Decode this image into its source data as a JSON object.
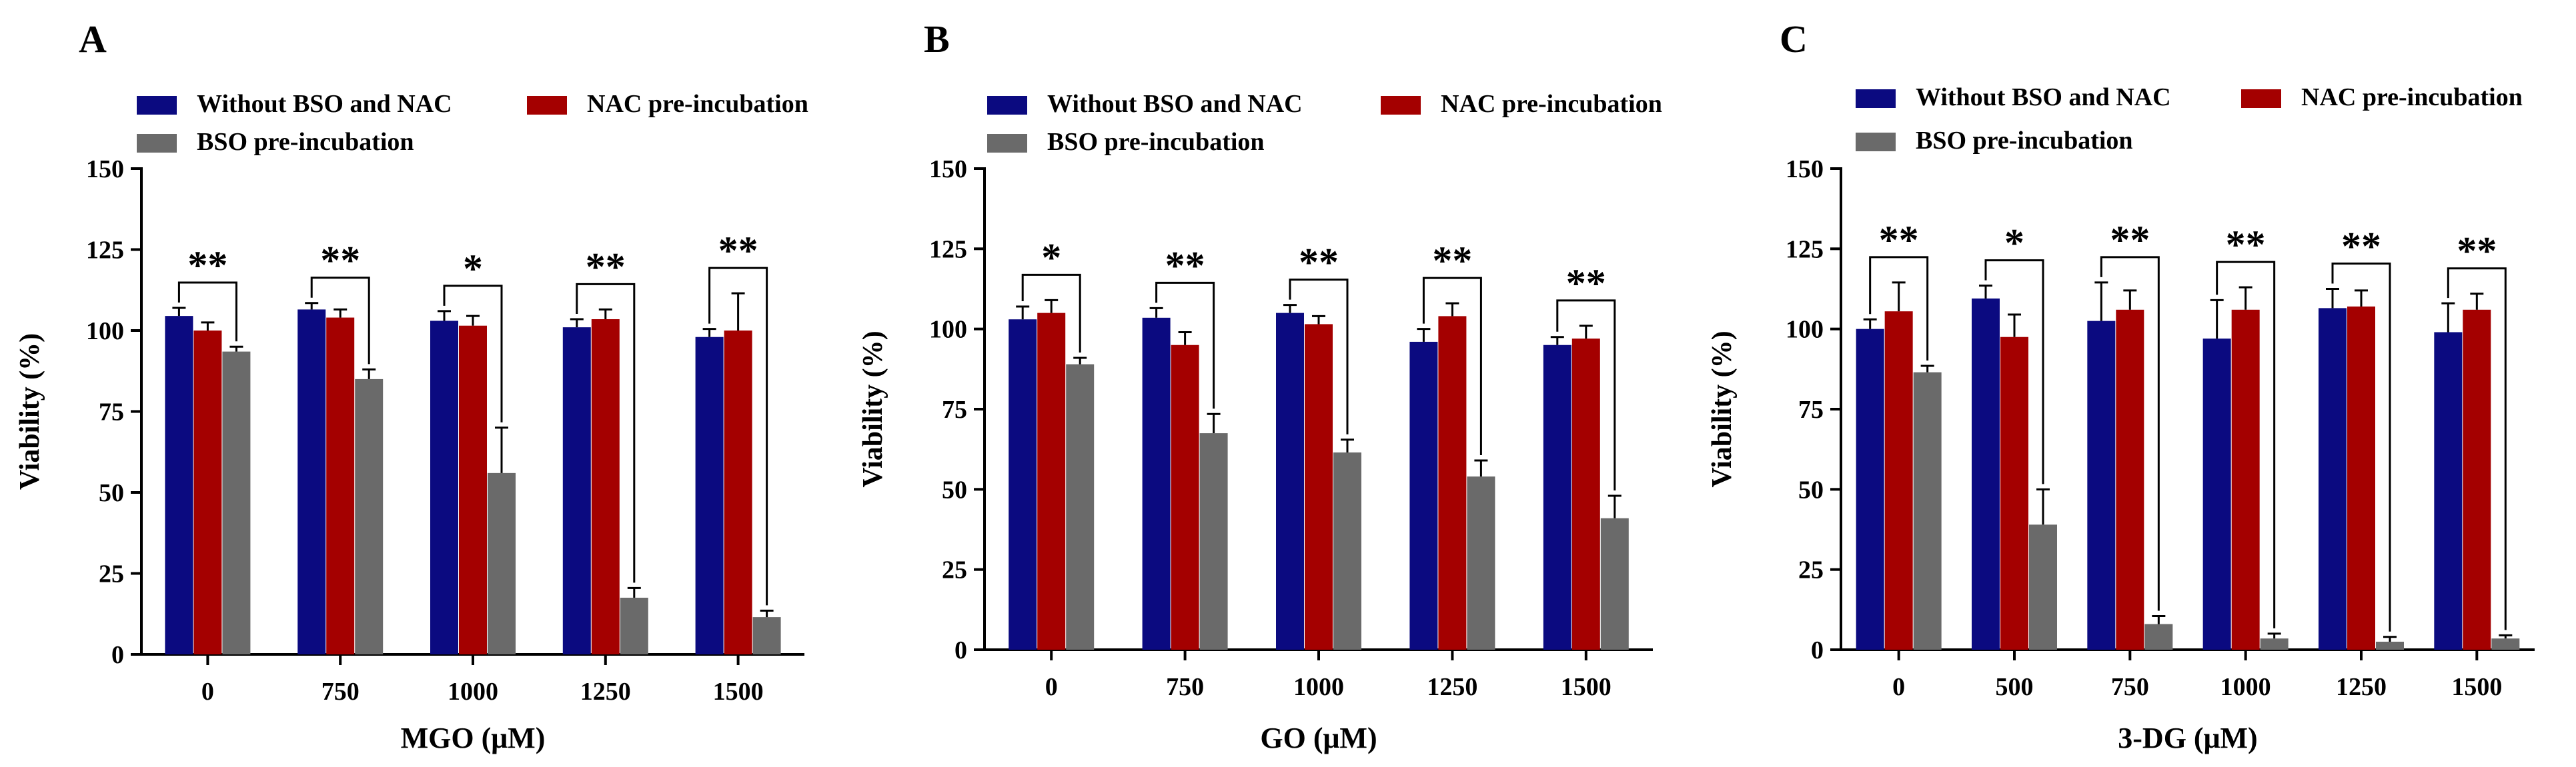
{
  "figure": {
    "series_names": [
      "Without BSO and NAC",
      "NAC pre-incubation",
      "BSO pre-incubation"
    ],
    "colors": [
      "#0b0a80",
      "#a40000",
      "#6a6a6a"
    ]
  },
  "chart_data": [
    {
      "type": "bar",
      "panel_label": "A",
      "xlabel": "MGO (μM)",
      "ylabel": "Viability (%)",
      "ylim": [
        0,
        150
      ],
      "yticks": [
        "0",
        "25",
        "50",
        "75",
        "100",
        "125",
        "150"
      ],
      "categories": [
        "0",
        "750",
        "1000",
        "1250",
        "1500"
      ],
      "series": [
        {
          "name": "Without BSO and NAC",
          "values": [
            104.5,
            106.5,
            103,
            101,
            98
          ],
          "errors": [
            2.5,
            2,
            3,
            2.5,
            2.5
          ]
        },
        {
          "name": "NAC pre-incubation",
          "values": [
            100,
            104,
            101.5,
            103.5,
            100
          ],
          "errors": [
            2.5,
            2.5,
            3,
            3,
            11.5
          ]
        },
        {
          "name": "BSO pre-incubation",
          "values": [
            93.5,
            85,
            56,
            17.5,
            11.5
          ],
          "errors": [
            1.5,
            3,
            14,
            3,
            2
          ]
        }
      ],
      "significance": [
        "**",
        "**",
        "*",
        "**",
        "**"
      ]
    },
    {
      "type": "bar",
      "panel_label": "B",
      "xlabel": "GO (μM)",
      "ylabel": "Viability (%)",
      "ylim": [
        0,
        150
      ],
      "yticks": [
        "0",
        "25",
        "50",
        "75",
        "100",
        "125",
        "150"
      ],
      "categories": [
        "0",
        "750",
        "1000",
        "1250",
        "1500"
      ],
      "series": [
        {
          "name": "Without BSO and NAC",
          "values": [
            103,
            103.5,
            105,
            96,
            95
          ],
          "errors": [
            4,
            3,
            2.5,
            4,
            2.5
          ]
        },
        {
          "name": "NAC pre-incubation",
          "values": [
            105,
            95,
            101.5,
            104,
            97
          ],
          "errors": [
            4,
            4,
            2.5,
            4,
            4
          ]
        },
        {
          "name": "BSO pre-incubation",
          "values": [
            89,
            67.5,
            61.5,
            54,
            41
          ],
          "errors": [
            2,
            6,
            4,
            5,
            7
          ]
        }
      ],
      "significance": [
        "*",
        "**",
        "**",
        "**",
        "**"
      ]
    },
    {
      "type": "bar",
      "panel_label": "C",
      "xlabel": "3-DG (μM)",
      "ylabel": "Viability  (%)",
      "ylim": [
        0,
        150
      ],
      "yticks": [
        "0",
        "25",
        "50",
        "75",
        "100",
        "125",
        "150"
      ],
      "categories": [
        "0",
        "500",
        "750",
        "1000",
        "1250",
        "1500"
      ],
      "series": [
        {
          "name": "Without BSO and NAC",
          "values": [
            100,
            109.5,
            102.5,
            97,
            106.5,
            99
          ],
          "errors": [
            3,
            4,
            12,
            12,
            6,
            9
          ]
        },
        {
          "name": "NAC pre-incubation",
          "values": [
            105.5,
            97.5,
            106,
            106,
            107,
            106
          ],
          "errors": [
            9,
            7,
            6,
            7,
            5,
            5
          ]
        },
        {
          "name": "BSO pre-incubation",
          "values": [
            86.5,
            39,
            8,
            3.5,
            2.5,
            3.5
          ],
          "errors": [
            2,
            11,
            2.5,
            1.5,
            1.5,
            1
          ]
        }
      ],
      "significance": [
        "**",
        "*",
        "**",
        "**",
        "**",
        "**"
      ]
    }
  ]
}
